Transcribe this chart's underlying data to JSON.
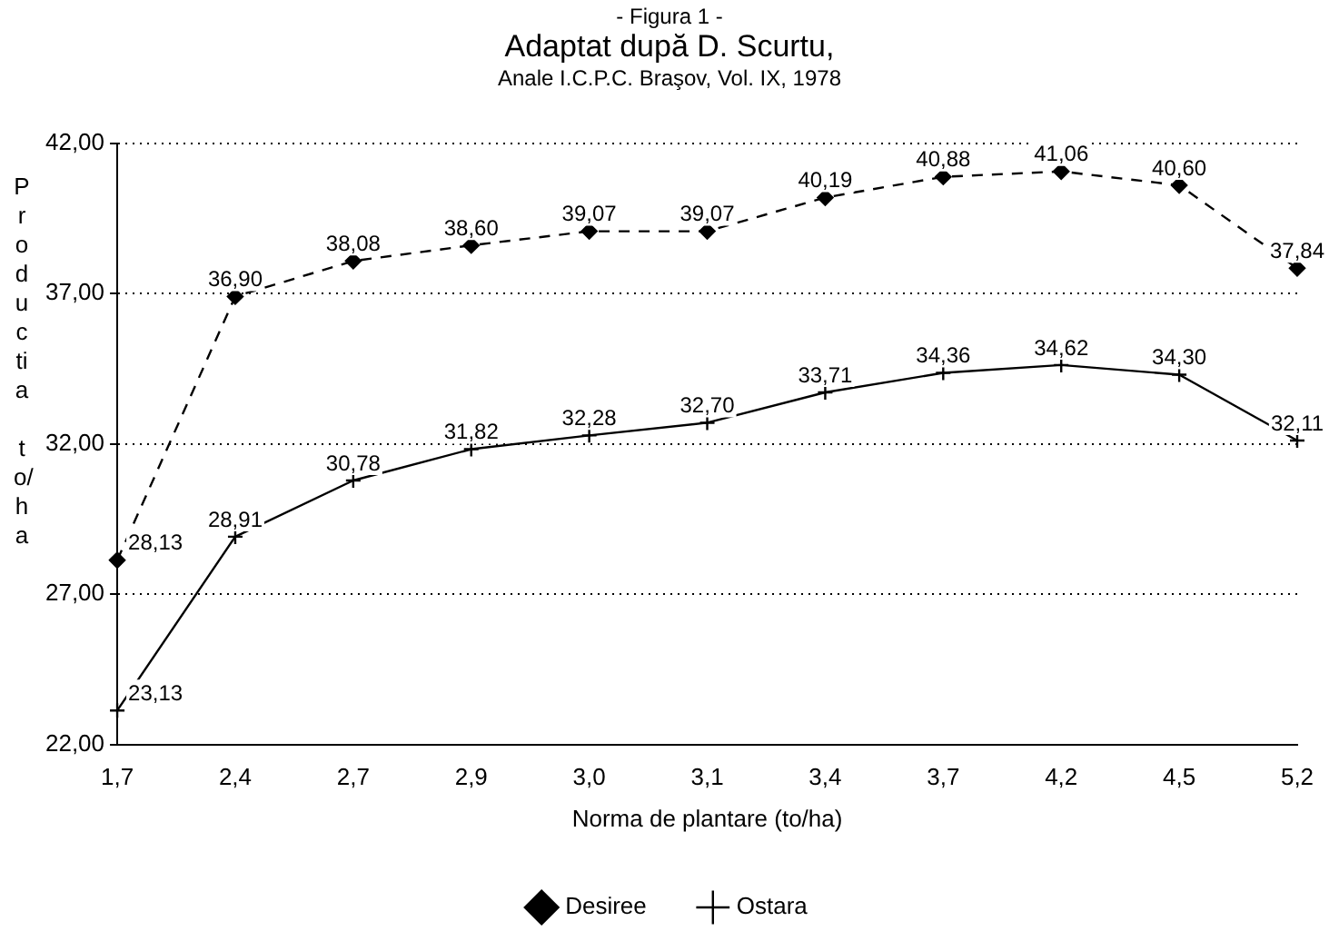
{
  "chart_data": {
    "type": "line",
    "title": "- Figura 1 -",
    "subtitle": "Adaptat după D. Scurtu,",
    "annotations": [
      "Anale I.C.P.C. Braşov, Vol. IX, 1978"
    ],
    "xlabel": "Norma de plantare (to/ha)",
    "ylabel": "Productia to/ha",
    "categories": [
      "1,7",
      "2,4",
      "2,7",
      "2,9",
      "3,0",
      "3,1",
      "3,4",
      "3,7",
      "4,2",
      "4,5",
      "5,2"
    ],
    "series": [
      {
        "name": "Desiree",
        "color": "#000000",
        "marker": "diamond",
        "line_style": "dashed",
        "values": [
          28.13,
          36.9,
          38.08,
          38.6,
          39.07,
          39.07,
          40.19,
          40.88,
          41.06,
          40.6,
          37.84
        ],
        "value_labels": [
          "28,13",
          "36,90",
          "38,08",
          "38,60",
          "39,07",
          "39,07",
          "40,19",
          "40,88",
          "41,06",
          "40,60",
          "37,84"
        ]
      },
      {
        "name": "Ostara",
        "color": "#000000",
        "marker": "cross",
        "line_style": "solid",
        "values": [
          23.13,
          28.91,
          30.78,
          31.82,
          32.28,
          32.7,
          33.71,
          34.36,
          34.62,
          34.3,
          32.11
        ],
        "value_labels": [
          "23,13",
          "28,91",
          "30,78",
          "31,82",
          "32,28",
          "32,70",
          "33,71",
          "34,36",
          "34,62",
          "34,30",
          "32,11"
        ]
      }
    ],
    "ylim": [
      22,
      42
    ],
    "yticks": [
      {
        "value": 22,
        "label": "22,00"
      },
      {
        "value": 27,
        "label": "27,00"
      },
      {
        "value": 32,
        "label": "32,00"
      },
      {
        "value": 37,
        "label": "37,00"
      },
      {
        "value": 42,
        "label": "42,00"
      }
    ],
    "grid": "y",
    "legend": "bottom"
  }
}
